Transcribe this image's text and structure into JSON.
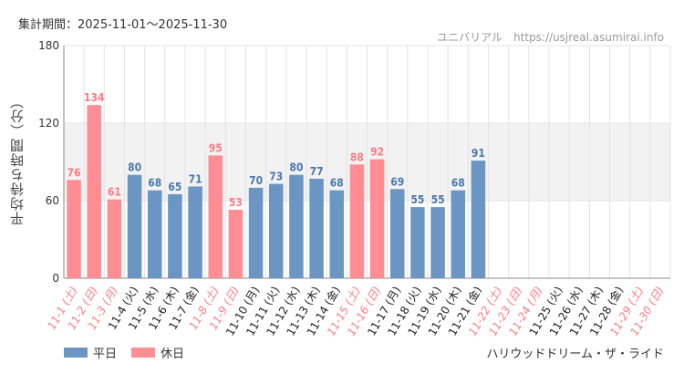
{
  "period_label": "集計期間：2025-11-01～2025-11-30",
  "watermark": "ユニバリアル　https://usjreal.asumirai.info",
  "footer_title": "ハリウッドドリーム・ザ・ライド",
  "colors": {
    "weekday": "#6b96c4",
    "holiday": "#ff8d94",
    "weekday_text": "#4a78ad",
    "holiday_text": "#ff7a82",
    "band": "#f2f2f2",
    "grid": "#e4e4e4"
  },
  "legend": [
    {
      "label": "平日",
      "kind": "weekday"
    },
    {
      "label": "休日",
      "kind": "holiday"
    }
  ],
  "chart_data": {
    "type": "bar",
    "title": "",
    "xlabel": "",
    "ylabel": "平均待ち時間（分）",
    "ylim": [
      0,
      180
    ],
    "yticks": [
      0,
      60,
      120,
      180
    ],
    "shaded_band": [
      60,
      120
    ],
    "categories": [
      "11-1 (土)",
      "11-2 (日)",
      "11-3 (月)",
      "11-4 (火)",
      "11-5 (水)",
      "11-6 (木)",
      "11-7 (金)",
      "11-8 (土)",
      "11-9 (日)",
      "11-10 (月)",
      "11-11 (火)",
      "11-12 (水)",
      "11-13 (木)",
      "11-14 (金)",
      "11-15 (土)",
      "11-16 (日)",
      "11-17 (月)",
      "11-18 (火)",
      "11-19 (水)",
      "11-20 (木)",
      "11-21 (金)",
      "11-22 (土)",
      "11-23 (日)",
      "11-24 (月)",
      "11-25 (火)",
      "11-26 (水)",
      "11-27 (木)",
      "11-28 (金)",
      "11-29 (土)",
      "11-30 (日)"
    ],
    "values": [
      76,
      134,
      61,
      80,
      68,
      65,
      71,
      95,
      53,
      70,
      73,
      80,
      77,
      68,
      88,
      92,
      69,
      55,
      55,
      68,
      91,
      null,
      null,
      null,
      null,
      null,
      null,
      null,
      null,
      null
    ],
    "day_type": [
      "holiday",
      "holiday",
      "holiday",
      "weekday",
      "weekday",
      "weekday",
      "weekday",
      "holiday",
      "holiday",
      "weekday",
      "weekday",
      "weekday",
      "weekday",
      "weekday",
      "holiday",
      "holiday",
      "weekday",
      "weekday",
      "weekday",
      "weekday",
      "weekday",
      "holiday",
      "holiday",
      "holiday",
      "weekday",
      "weekday",
      "weekday",
      "weekday",
      "holiday",
      "holiday"
    ]
  }
}
